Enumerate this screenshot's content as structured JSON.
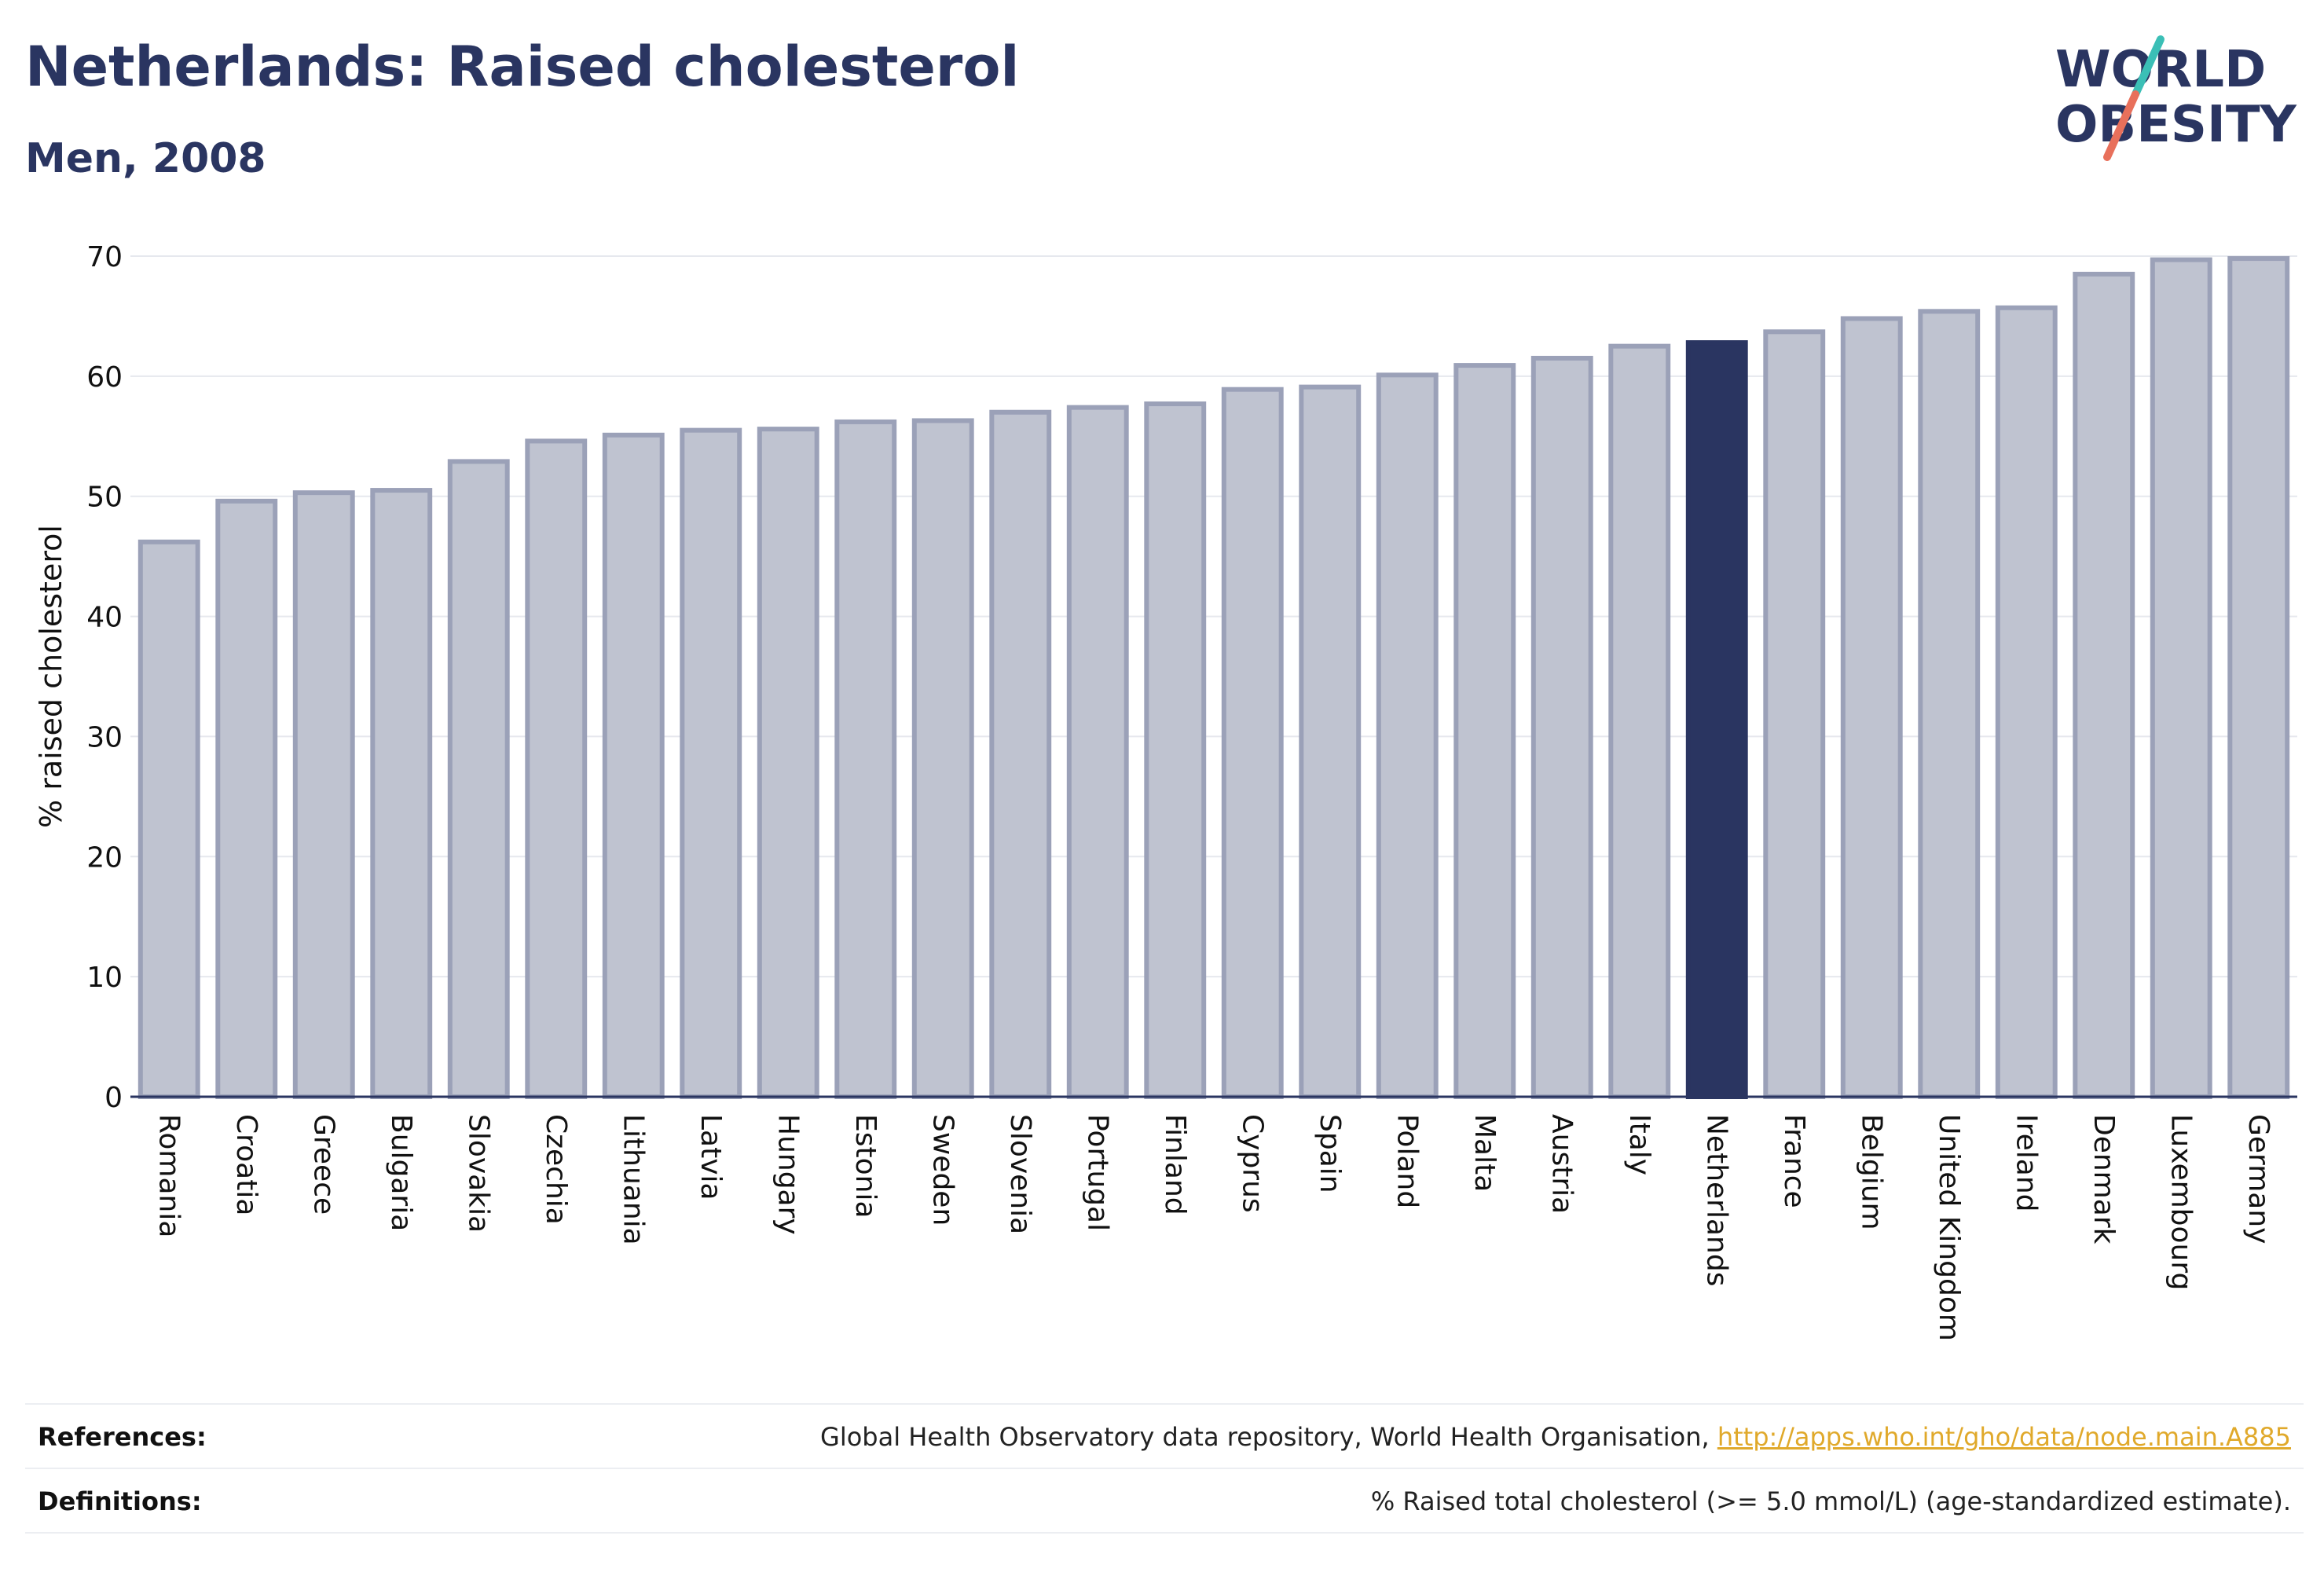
{
  "header": {
    "title": "Netherlands: Raised cholesterol",
    "subtitle": "Men, 2008"
  },
  "logo": {
    "line1": "WORLD",
    "line2": "OBESITY"
  },
  "colors": {
    "title": "#2a3561",
    "bar_fill": "#bfc3d0",
    "bar_stroke": "#9ba1b8",
    "highlight": "#2a3561",
    "link": "#e0a92b",
    "logo_teal": "#3bbfb6",
    "logo_coral": "#e8705b"
  },
  "chart_data": {
    "type": "bar",
    "ylabel": "% raised cholesterol",
    "xlabel": "",
    "ylim": [
      0,
      70
    ],
    "yticks": [
      0,
      10,
      20,
      30,
      40,
      50,
      60,
      70
    ],
    "grid": true,
    "highlight": "Netherlands",
    "categories": [
      "Romania",
      "Croatia",
      "Greece",
      "Bulgaria",
      "Slovakia",
      "Czechia",
      "Lithuania",
      "Latvia",
      "Hungary",
      "Estonia",
      "Sweden",
      "Slovenia",
      "Portugal",
      "Finland",
      "Cyprus",
      "Spain",
      "Poland",
      "Malta",
      "Austria",
      "Italy",
      "Netherlands",
      "France",
      "Belgium",
      "United Kingdom",
      "Ireland",
      "Denmark",
      "Luxembourg",
      "Germany"
    ],
    "values": [
      46.2,
      49.6,
      50.3,
      50.5,
      52.9,
      54.6,
      55.1,
      55.5,
      55.6,
      56.2,
      56.3,
      57.0,
      57.4,
      57.7,
      58.9,
      59.1,
      60.1,
      60.9,
      61.5,
      62.5,
      62.8,
      63.7,
      64.8,
      65.4,
      65.7,
      68.5,
      69.7,
      69.8
    ]
  },
  "footer": {
    "references_label": "References:",
    "references_text": "Global Health Observatory data repository, World Health Organisation, ",
    "references_link": "http://apps.who.int/gho/data/node.main.A885",
    "definitions_label": "Definitions:",
    "definitions_text": "% Raised total cholesterol (>= 5.0 mmol/L) (age-standardized estimate)."
  }
}
